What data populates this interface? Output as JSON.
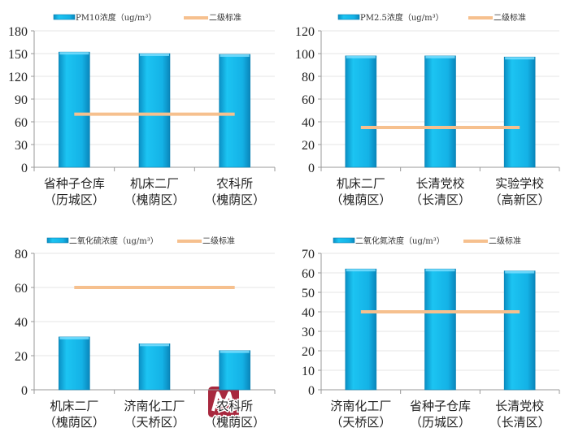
{
  "chart_data": [
    {
      "type": "bar",
      "legend": {
        "bar": "PM10浓度（ug/m³）",
        "line": "二级标准"
      },
      "categories": [
        [
          "省种子仓库",
          "（历城区）"
        ],
        [
          "机床二厂",
          "（槐荫区）"
        ],
        [
          "农科所",
          "（槐荫区）"
        ]
      ],
      "values": [
        152,
        150,
        149
      ],
      "standard": 70,
      "ylim": [
        0,
        180
      ],
      "yticks": [
        0,
        30,
        60,
        90,
        120,
        150,
        180
      ]
    },
    {
      "type": "bar",
      "legend": {
        "bar": "PM2.5浓度（ug/m³）",
        "line": "二级标准"
      },
      "categories": [
        [
          "机床二厂",
          "（槐荫区）"
        ],
        [
          "长清党校",
          "（长清区）"
        ],
        [
          "实验学校",
          "（高新区）"
        ]
      ],
      "values": [
        98,
        98,
        97
      ],
      "standard": 35,
      "ylim": [
        0,
        120
      ],
      "yticks": [
        0,
        20,
        40,
        60,
        80,
        100,
        120
      ]
    },
    {
      "type": "bar",
      "legend": {
        "bar": "二氧化硫浓度（ug/m³）",
        "line": "二级标准"
      },
      "categories": [
        [
          "机床二厂",
          "（槐荫区）"
        ],
        [
          "济南化工厂",
          "（天桥区）"
        ],
        [
          "农科所",
          "（槐荫区）"
        ]
      ],
      "values": [
        31,
        27,
        23
      ],
      "standard": 60,
      "ylim": [
        0,
        80
      ],
      "yticks": [
        0,
        20,
        40,
        60,
        80
      ]
    },
    {
      "type": "bar",
      "legend": {
        "bar": "二氧化氮浓度（ug/m³）",
        "line": "二级标准"
      },
      "categories": [
        [
          "济南化工厂",
          "（天桥区）"
        ],
        [
          "省种子仓库",
          "（历城区）"
        ],
        [
          "长清党校",
          "（长清区）"
        ]
      ],
      "values": [
        62,
        62,
        61
      ],
      "standard": 40,
      "ylim": [
        0,
        70
      ],
      "yticks": [
        0,
        10,
        20,
        30,
        40,
        50,
        60,
        70
      ]
    }
  ],
  "colors": {
    "bar": "#12b4e8",
    "bar_edge": "#0a7fb0",
    "line": "#f6c08e",
    "grid": "#e4e4e4"
  },
  "watermark": "M"
}
